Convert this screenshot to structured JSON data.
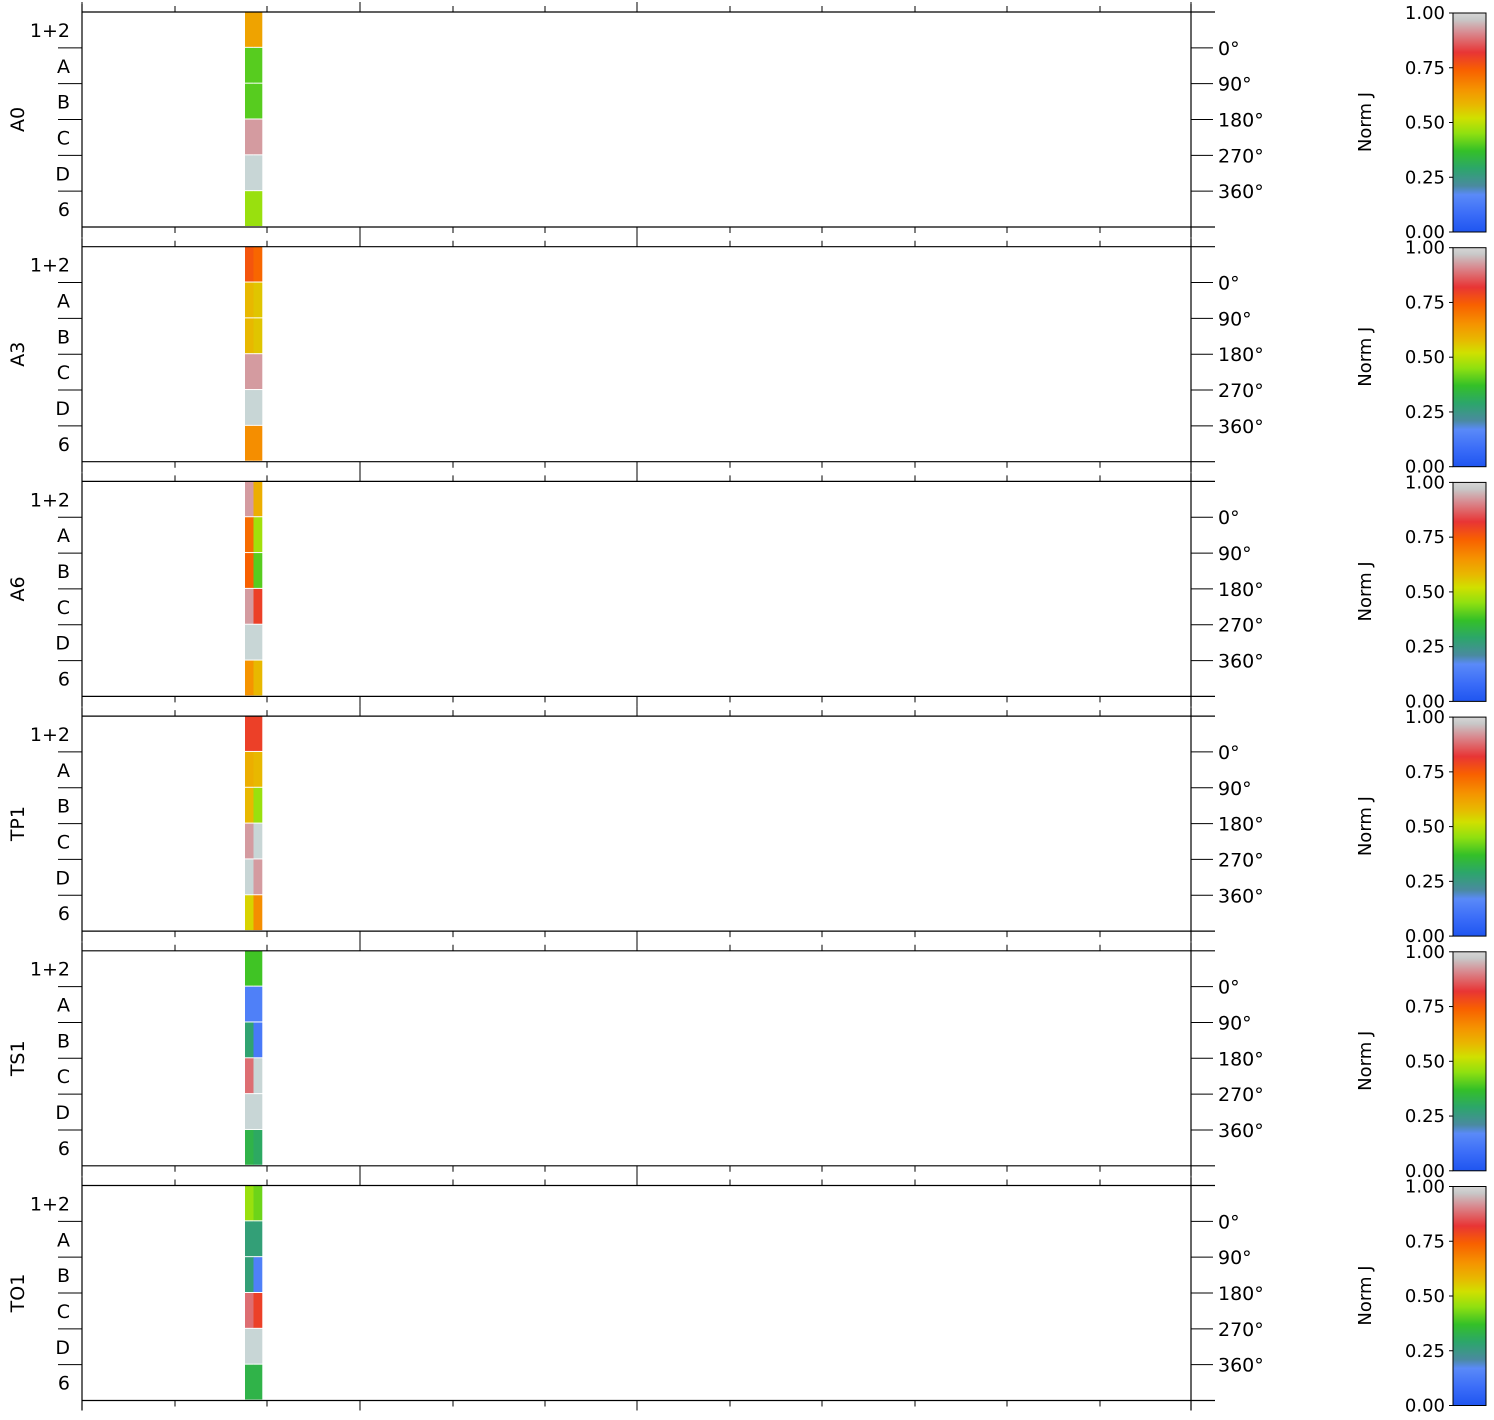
{
  "chart_data": {
    "type": "heatmap",
    "row_labels": [
      "1+2",
      "A",
      "B",
      "C",
      "D",
      "6"
    ],
    "angle_ticks": [
      "0°",
      "90°",
      "180°",
      "270°",
      "360°"
    ],
    "colorbar": {
      "label": "Norm J",
      "ticks": [
        "0.00",
        "0.25",
        "0.50",
        "0.75",
        "1.00"
      ],
      "range": [
        0,
        1
      ]
    },
    "panels": [
      {
        "name": "A0",
        "cells": [
          [
            0.62,
            0.62
          ],
          [
            0.4,
            0.4
          ],
          [
            0.4,
            0.4
          ],
          [
            0.93,
            0.93
          ],
          [
            1.0,
            1.0
          ],
          [
            0.46,
            0.46
          ]
        ]
      },
      {
        "name": "A3",
        "cells": [
          [
            0.76,
            0.73
          ],
          [
            0.58,
            0.56
          ],
          [
            0.58,
            0.56
          ],
          [
            0.93,
            0.93
          ],
          [
            1.0,
            1.0
          ],
          [
            0.66,
            0.66
          ]
        ]
      },
      {
        "name": "A6",
        "cells": [
          [
            0.93,
            0.6
          ],
          [
            0.72,
            0.47
          ],
          [
            0.74,
            0.4
          ],
          [
            0.93,
            0.8
          ],
          [
            1.0,
            1.0
          ],
          [
            0.65,
            0.58
          ]
        ]
      },
      {
        "name": "TP1",
        "cells": [
          [
            0.8,
            0.8
          ],
          [
            0.6,
            0.58
          ],
          [
            0.58,
            0.46
          ],
          [
            0.93,
            1.0
          ],
          [
            1.0,
            0.93
          ],
          [
            0.54,
            0.66
          ]
        ]
      },
      {
        "name": "TS1",
        "cells": [
          [
            0.38,
            0.38
          ],
          [
            0.14,
            0.14
          ],
          [
            0.28,
            0.12
          ],
          [
            0.88,
            1.0
          ],
          [
            1.0,
            1.0
          ],
          [
            0.33,
            0.3
          ]
        ]
      },
      {
        "name": "TO1",
        "cells": [
          [
            0.46,
            0.42
          ],
          [
            0.27,
            0.27
          ],
          [
            0.27,
            0.14
          ],
          [
            0.88,
            0.8
          ],
          [
            1.0,
            1.0
          ],
          [
            0.33,
            0.33
          ]
        ]
      }
    ]
  }
}
